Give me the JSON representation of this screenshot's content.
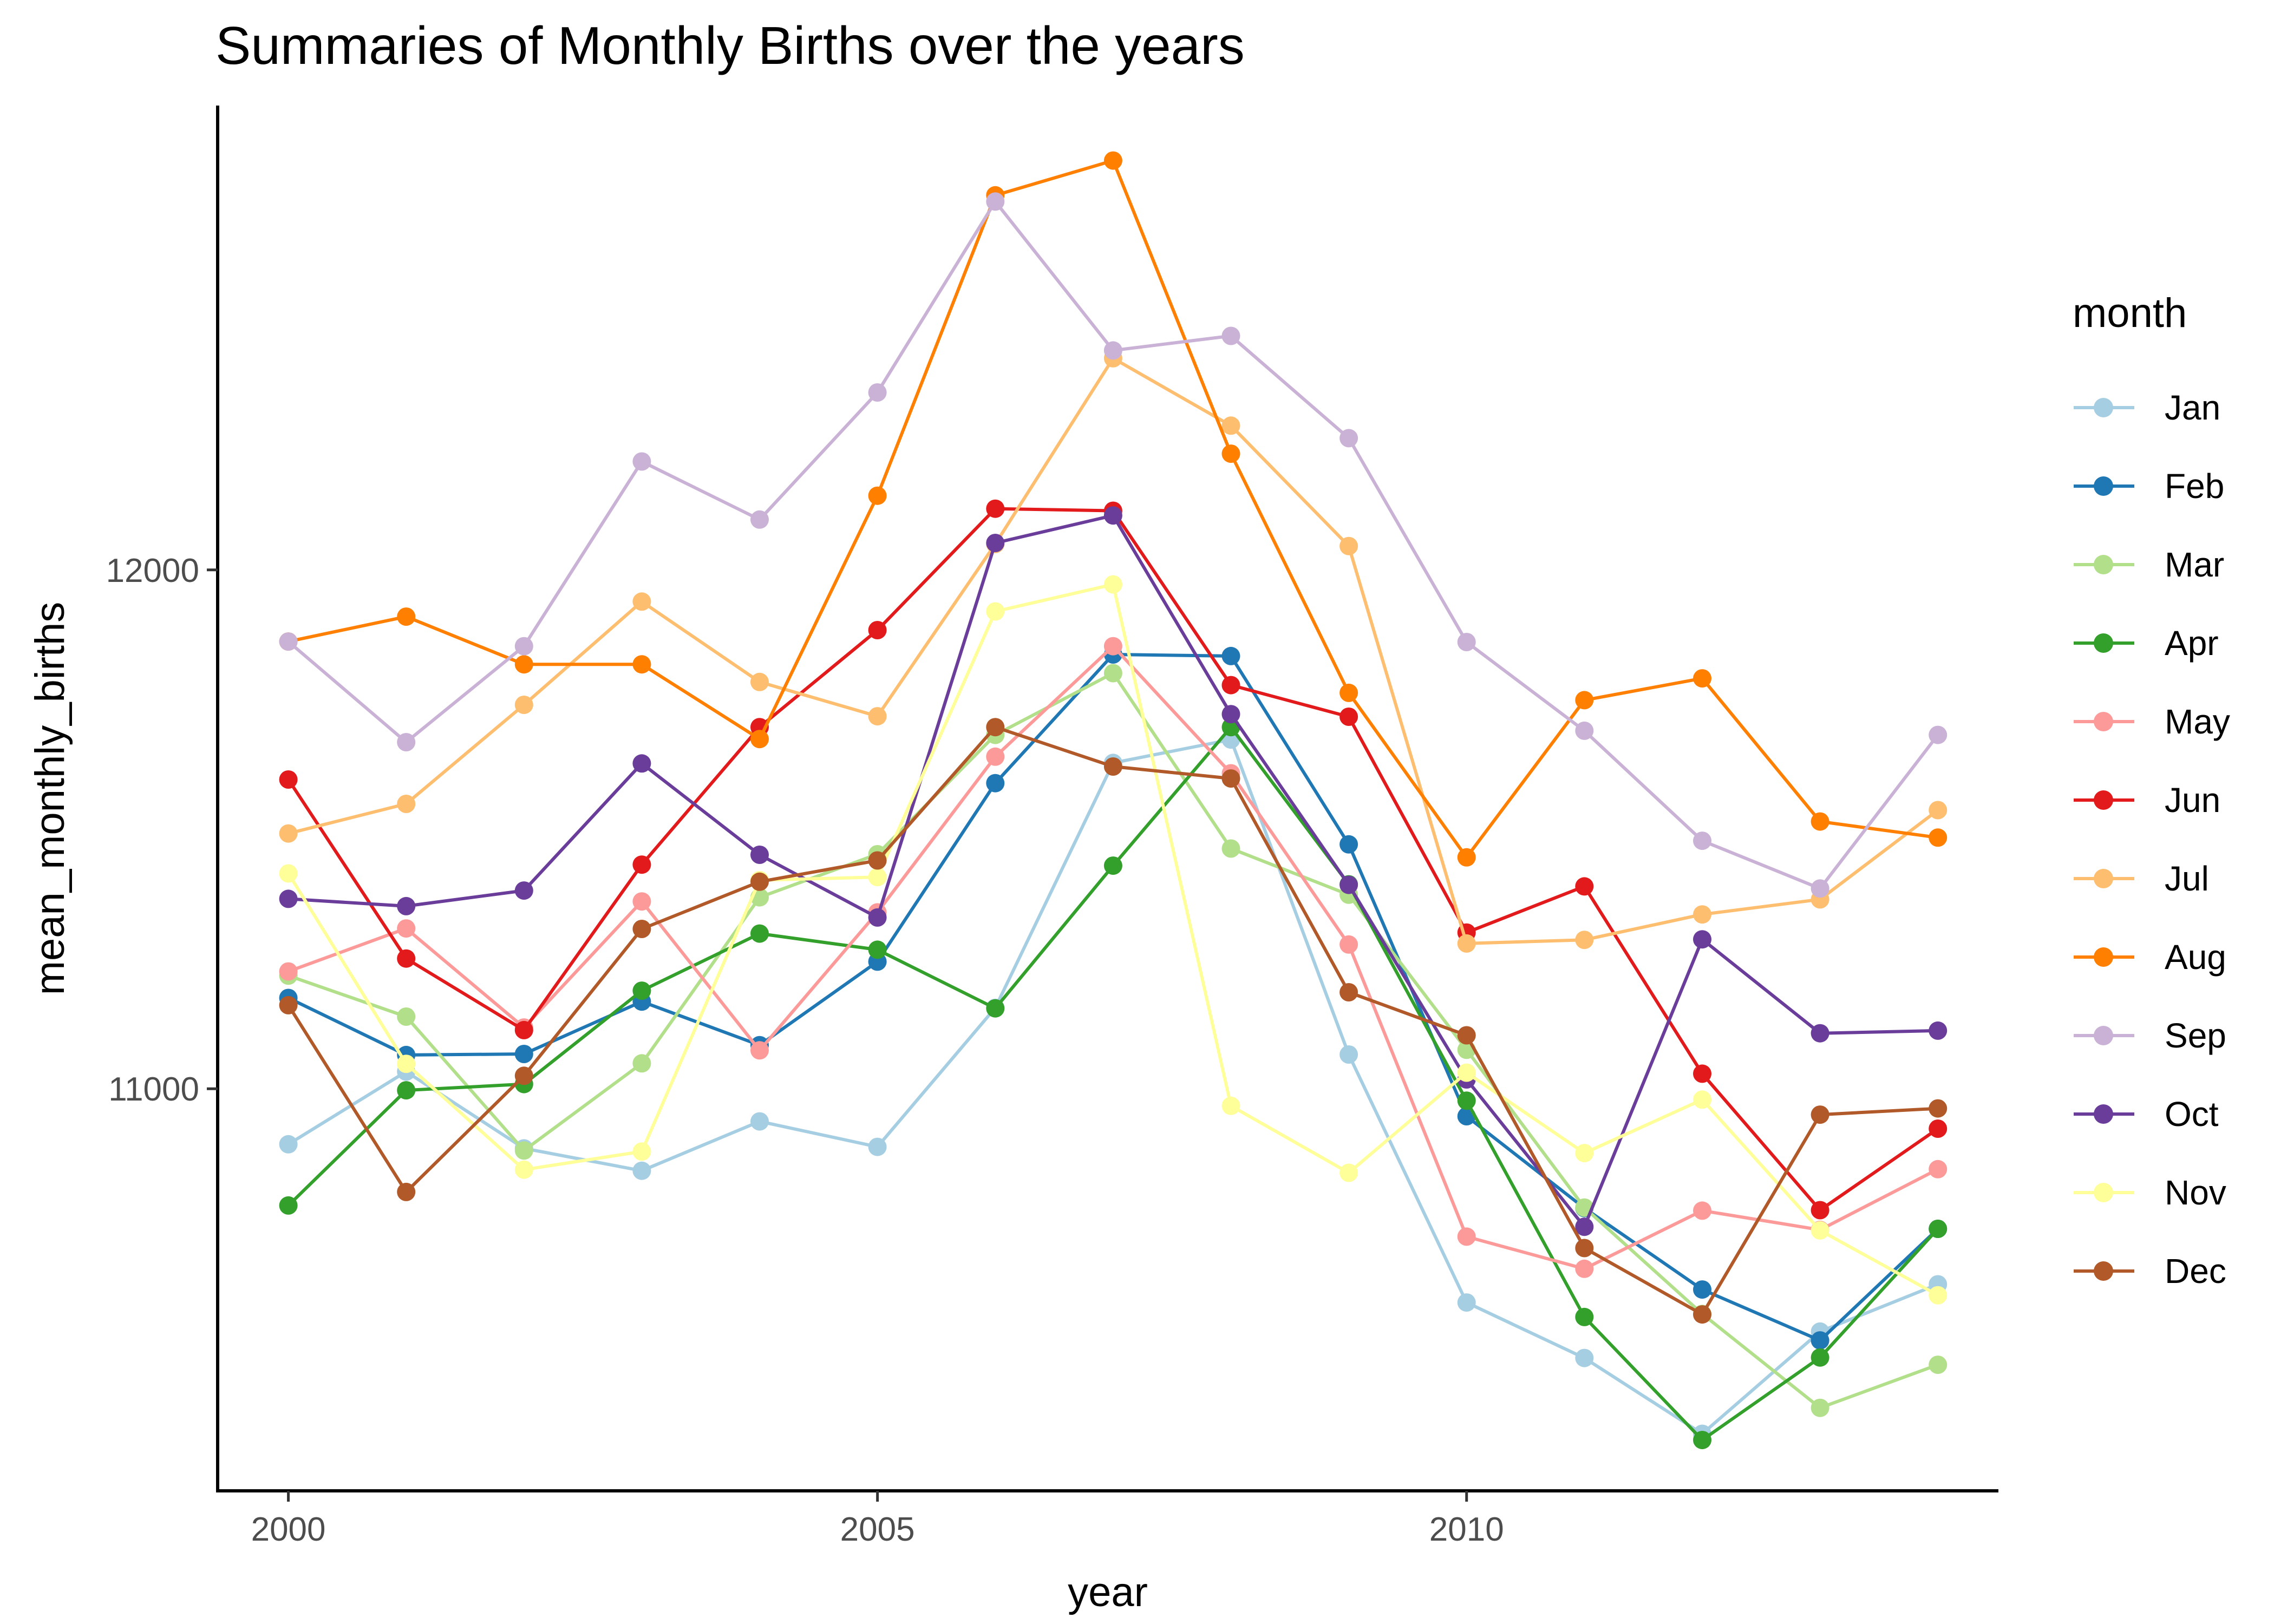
{
  "chart_data": {
    "type": "line",
    "title": "Summaries of Monthly Births over the years",
    "xlabel": "year",
    "ylabel": "mean_monthly_births",
    "x": [
      2000,
      2001,
      2002,
      2003,
      2004,
      2005,
      2006,
      2007,
      2008,
      2009,
      2010,
      2011,
      2012,
      2013,
      2014
    ],
    "xlim": [
      1999.4,
      2014.5
    ],
    "ylim": [
      10225,
      12895
    ],
    "x_ticks": [
      2000,
      2005,
      2010
    ],
    "x_tick_labels": [
      "2000",
      "2005",
      "2010"
    ],
    "y_ticks": [
      11000,
      12000
    ],
    "y_tick_labels": [
      "11000",
      "12000"
    ],
    "grid": false,
    "legend": {
      "title": "month",
      "position": "right"
    },
    "series": [
      {
        "name": "Jan",
        "color": "#A6CEE3",
        "values": [
          10893,
          11033,
          10885,
          10842,
          10937,
          10888,
          11156,
          11628,
          11673,
          11066,
          10588,
          10481,
          10335,
          10532,
          10623
        ]
      },
      {
        "name": "Feb",
        "color": "#1F78B4",
        "values": [
          11175,
          11065,
          11067,
          11168,
          11084,
          11245,
          11589,
          11837,
          11834,
          11471,
          10947,
          10770,
          10613,
          10515,
          10730
        ]
      },
      {
        "name": "Mar",
        "color": "#B2DF8A",
        "values": [
          11218,
          11139,
          10881,
          11049,
          11369,
          11452,
          11682,
          11801,
          11463,
          11374,
          11075,
          10771,
          10566,
          10385,
          10468
        ]
      },
      {
        "name": "Apr",
        "color": "#33A02C",
        "values": [
          10775,
          10997,
          11009,
          11189,
          11299,
          11268,
          11155,
          11430,
          11697,
          11394,
          10977,
          10560,
          10323,
          10482,
          10730
        ]
      },
      {
        "name": "May",
        "color": "#FB9A99",
        "values": [
          11226,
          11309,
          11118,
          11361,
          11074,
          11340,
          11640,
          11853,
          11608,
          11278,
          10715,
          10653,
          10765,
          10728,
          10845
        ]
      },
      {
        "name": "Jun",
        "color": "#E31A1C",
        "values": [
          11596,
          11251,
          11113,
          11432,
          11697,
          11884,
          12118,
          12114,
          11778,
          11717,
          11301,
          11390,
          11029,
          10766,
          10923
        ]
      },
      {
        "name": "Jul",
        "color": "#FDBF6F",
        "values": [
          11492,
          11549,
          11740,
          11939,
          11784,
          11718,
          12050,
          12408,
          12278,
          12046,
          11280,
          11287,
          11336,
          11365,
          11537
        ]
      },
      {
        "name": "Aug",
        "color": "#FF7F00",
        "values": [
          11862,
          11910,
          11818,
          11818,
          11674,
          12143,
          12722,
          12789,
          12224,
          11763,
          11446,
          11749,
          11791,
          11515,
          11484
        ]
      },
      {
        "name": "Sep",
        "color": "#CAB2D6",
        "values": [
          11862,
          11668,
          11853,
          12209,
          12097,
          12342,
          12710,
          12423,
          12451,
          12254,
          11861,
          11690,
          11478,
          11386,
          11682
        ]
      },
      {
        "name": "Oct",
        "color": "#6A3D9A",
        "values": [
          11366,
          11352,
          11382,
          11627,
          11451,
          11330,
          12052,
          12105,
          11722,
          11393,
          11018,
          10734,
          11288,
          11107,
          11112
        ]
      },
      {
        "name": "Nov",
        "color": "#FFFF99",
        "values": [
          11415,
          11048,
          10844,
          10879,
          11402,
          11408,
          11920,
          11972,
          10967,
          10838,
          11031,
          10876,
          10979,
          10727,
          10602
        ]
      },
      {
        "name": "Dec",
        "color": "#B15928",
        "values": [
          11161,
          10801,
          11025,
          11308,
          11399,
          11440,
          11697,
          11621,
          11598,
          11186,
          11103,
          10693,
          10565,
          10950,
          10962
        ]
      }
    ]
  }
}
